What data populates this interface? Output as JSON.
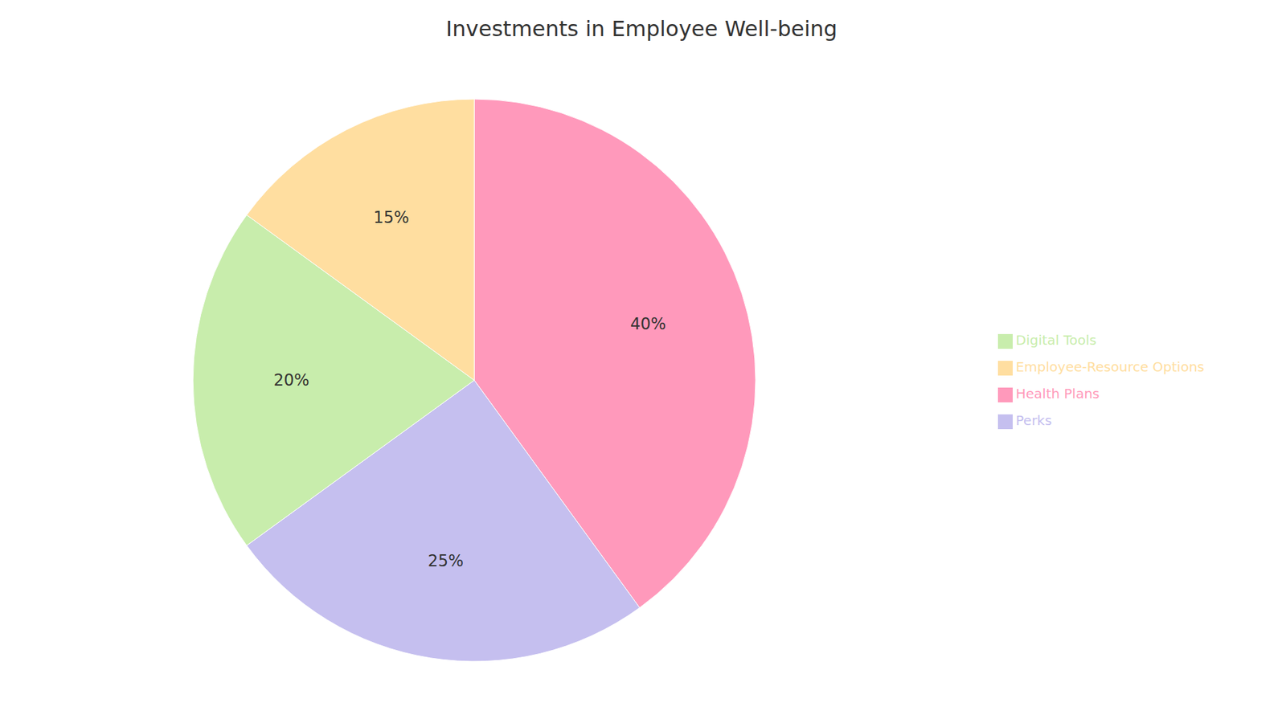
{
  "chart_data": {
    "type": "pie",
    "title": "Investments in Employee Well-being",
    "categories": [
      "Health Plans",
      "Perks",
      "Digital Tools",
      "Employee-Resource Options"
    ],
    "values": [
      40,
      25,
      20,
      15
    ],
    "value_labels": [
      "40%",
      "25%",
      "20%",
      "15%"
    ],
    "colors": [
      "#FF99BB",
      "#C5BFEF",
      "#C8EDAC",
      "#FFDEA0"
    ],
    "data_labels": true,
    "legend": "right"
  }
}
